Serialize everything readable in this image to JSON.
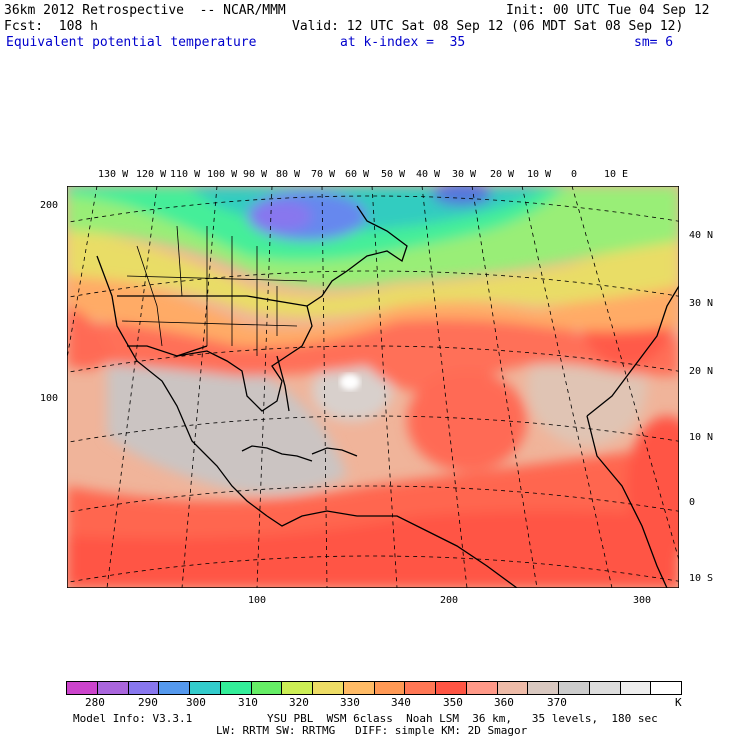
{
  "header": {
    "line1_left": "36km 2012 Retrospective  -- NCAR/MMM",
    "line1_right": "Init: 00 UTC Tue 04 Sep 12",
    "line2_left": "Fcst:  108 h",
    "line2_right": "Valid: 12 UTC Sat 08 Sep 12 (06 MDT Sat 08 Sep 12)",
    "field": "Equivalent potential temperature",
    "level": "at k-index =  35",
    "smooth": "sm= 6"
  },
  "axes": {
    "top_lon": [
      "130 W",
      "120 W",
      "110 W",
      "100 W",
      "90 W",
      "80 W",
      "70 W",
      "60 W",
      "50 W",
      "40 W",
      "30 W",
      "20 W",
      "10 W",
      "0",
      "10 E"
    ],
    "right_lat": [
      "40 N",
      "30 N",
      "20 N",
      "10 N",
      "0",
      "10 S"
    ],
    "left_grid": [
      "200",
      "100"
    ],
    "bottom_grid": [
      "100",
      "200",
      "300"
    ]
  },
  "colorbar": {
    "colors": [
      "#cc44cc",
      "#aa66dd",
      "#8877ee",
      "#5599ee",
      "#33cccc",
      "#33ee99",
      "#66ee66",
      "#ccee55",
      "#eedd66",
      "#ffbb66",
      "#ff9955",
      "#ff7755",
      "#ff5544",
      "#ff9988",
      "#eebba8",
      "#d9c8c0",
      "#cccccc",
      "#dddddd",
      "#eeeeee",
      "#ffffff"
    ],
    "labels": [
      "280",
      "290",
      "300",
      "310",
      "320",
      "330",
      "340",
      "350",
      "360",
      "370"
    ],
    "unit": "K"
  },
  "footer": {
    "line1_left": "Model Info: V3.3.1",
    "line1_right": "YSU PBL  WSM 6class  Noah LSM  36 km,   35 levels,  180 sec",
    "line2": "LW: RRTM SW: RRTMG   DIFF: simple KM: 2D Smagor"
  }
}
